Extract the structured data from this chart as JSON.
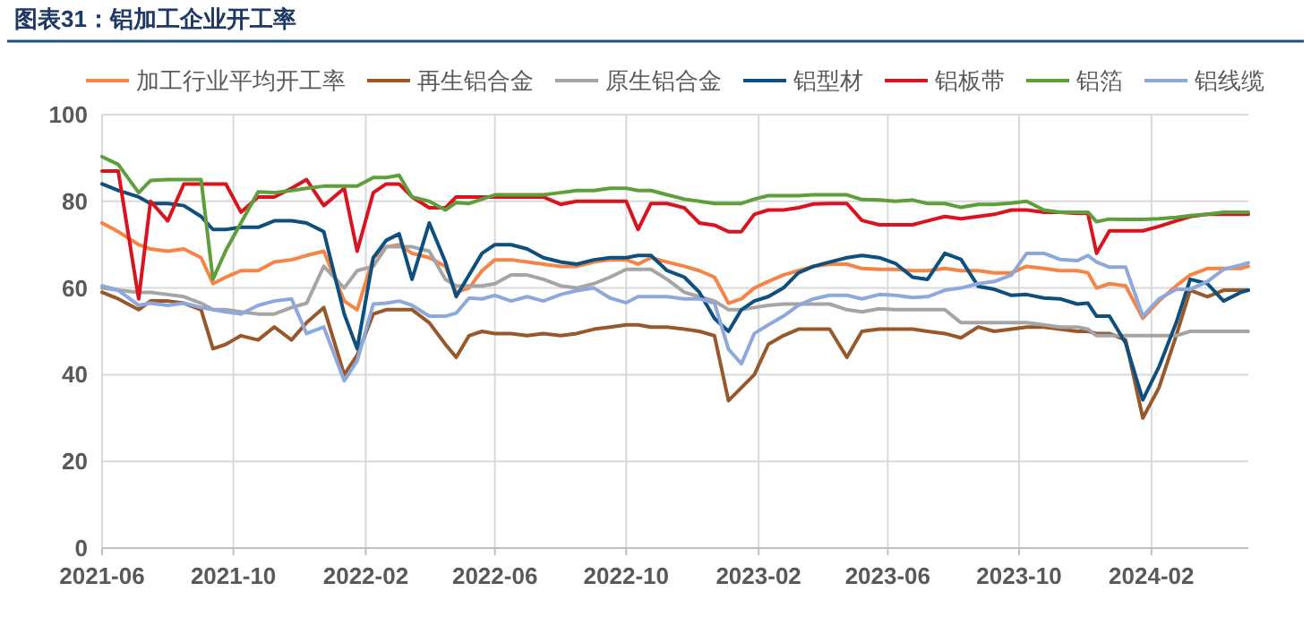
{
  "chart_data": {
    "type": "line",
    "title": "图表31：铝加工企业开工率",
    "legend": "top",
    "grid": true,
    "xlim": [
      "2021-06-01",
      "2024-05-01"
    ],
    "xticks": [
      "2021-06",
      "2021-10",
      "2022-02",
      "2022-06",
      "2022-10",
      "2023-02",
      "2023-06",
      "2023-10",
      "2024-02"
    ],
    "ylim": [
      0,
      100
    ],
    "yticks": [
      0,
      20,
      40,
      60,
      80,
      100
    ],
    "x": [
      "2021-06-01",
      "2021-06-16",
      "2021-07-05",
      "2021-07-16",
      "2021-08-01",
      "2021-08-16",
      "2021-09-01",
      "2021-09-12",
      "2021-09-24",
      "2021-10-08",
      "2021-10-24",
      "2021-11-08",
      "2021-11-24",
      "2021-12-08",
      "2021-12-24",
      "2022-01-12",
      "2022-01-24",
      "2022-02-08",
      "2022-02-20",
      "2022-03-04",
      "2022-03-16",
      "2022-04-01",
      "2022-04-16",
      "2022-04-26",
      "2022-05-08",
      "2022-05-20",
      "2022-06-01",
      "2022-06-16",
      "2022-07-01",
      "2022-07-16",
      "2022-08-01",
      "2022-08-16",
      "2022-09-01",
      "2022-09-16",
      "2022-10-01",
      "2022-10-12",
      "2022-10-24",
      "2022-11-08",
      "2022-11-24",
      "2022-12-08",
      "2022-12-22",
      "2023-01-04",
      "2023-01-16",
      "2023-01-28",
      "2023-02-10",
      "2023-02-24",
      "2023-03-10",
      "2023-03-24",
      "2023-04-08",
      "2023-04-24",
      "2023-05-08",
      "2023-05-24",
      "2023-06-08",
      "2023-06-24",
      "2023-07-08",
      "2023-07-24",
      "2023-08-08",
      "2023-08-24",
      "2023-09-08",
      "2023-09-24",
      "2023-10-08",
      "2023-10-24",
      "2023-11-08",
      "2023-11-24",
      "2023-12-04",
      "2023-12-12",
      "2023-12-24",
      "2024-01-08",
      "2024-01-24",
      "2024-02-08",
      "2024-02-24",
      "2024-03-08",
      "2024-03-24",
      "2024-04-08",
      "2024-04-24",
      "2024-05-01"
    ],
    "series": [
      {
        "name": "加工行业平均开工率",
        "color": "#f58445",
        "values": [
          75,
          73,
          70,
          69,
          68.5,
          69,
          67,
          61,
          62.5,
          64,
          64,
          66,
          66.5,
          67.5,
          68.5,
          57,
          55,
          67,
          69.5,
          70,
          68,
          67,
          65,
          59,
          60,
          64,
          66.5,
          66.5,
          66,
          65.5,
          65,
          65,
          66,
          66.5,
          66.5,
          65.5,
          67,
          66,
          65,
          64,
          62.5,
          56.5,
          57.5,
          60,
          61.5,
          63,
          64,
          65,
          65.5,
          65.5,
          64.5,
          64.3,
          64.3,
          64,
          64,
          64.5,
          64,
          64,
          63.5,
          63.5,
          65,
          64.5,
          64,
          64,
          63.5,
          60,
          61,
          60.5,
          53,
          57,
          60.5,
          63,
          64.5,
          64.5,
          64.5,
          65
        ]
      },
      {
        "name": "再生铝合金",
        "color": "#99582a",
        "values": [
          59,
          57.5,
          55,
          57,
          57,
          56.5,
          55,
          46,
          47,
          49,
          48,
          51,
          48,
          52,
          55.5,
          40,
          44.5,
          54,
          55,
          55,
          55,
          52,
          47,
          44,
          49,
          50,
          49.5,
          49.5,
          49,
          49.5,
          49,
          49.5,
          50.5,
          51,
          51.5,
          51.5,
          51,
          51,
          50.5,
          50,
          49,
          34,
          37,
          40,
          47,
          49,
          50.5,
          50.5,
          50.5,
          44,
          50,
          50.5,
          50.5,
          50.5,
          50,
          49.5,
          48.5,
          51,
          50,
          50.5,
          51,
          51,
          50.5,
          50,
          50,
          49.5,
          49.5,
          48,
          30,
          37,
          49,
          59.5,
          58,
          59.5,
          59.5,
          59.5
        ]
      },
      {
        "name": "原生铝合金",
        "color": "#a5a5a5",
        "values": [
          60,
          59.5,
          59,
          59,
          58.5,
          58,
          56.5,
          55,
          55,
          54.5,
          54,
          54,
          55.5,
          56.5,
          65,
          60,
          64,
          65,
          69.5,
          69.5,
          69.5,
          68.5,
          62,
          60.5,
          60.5,
          60.5,
          61,
          63,
          63,
          62,
          60.5,
          60,
          61,
          62.5,
          64.3,
          64.3,
          64.3,
          62,
          59,
          58,
          57,
          55,
          55,
          55.5,
          56,
          56.3,
          56.3,
          56.3,
          56.3,
          55,
          54.5,
          55.2,
          55,
          55,
          55,
          55,
          52,
          52,
          52,
          52,
          52,
          51.5,
          51,
          51,
          50.5,
          49,
          49,
          49,
          49,
          49,
          49,
          50,
          50,
          50,
          50,
          50
        ]
      },
      {
        "name": "铝型材",
        "color": "#0e4f7e",
        "values": [
          84,
          82.5,
          81,
          79.5,
          79.5,
          79,
          76.5,
          73.5,
          73.5,
          74,
          74,
          75.5,
          75.5,
          75,
          73,
          54,
          46,
          67,
          71,
          72.5,
          62,
          75,
          66,
          58,
          63,
          68,
          70,
          70,
          69,
          67,
          66,
          65.5,
          66.5,
          67,
          67,
          67.5,
          67.5,
          64,
          62.5,
          59,
          53,
          50,
          55,
          57,
          58,
          60,
          63.5,
          65,
          66,
          67,
          67.5,
          67,
          65.7,
          62.5,
          62,
          68,
          66.6,
          60.4,
          59.7,
          58.3,
          58.5,
          57.7,
          57.5,
          56.3,
          56.5,
          53.5,
          53.5,
          47.3,
          34.2,
          41.8,
          52,
          62,
          61,
          57,
          59,
          59.5
        ]
      },
      {
        "name": "铝板带",
        "color": "#d9141e",
        "values": [
          87,
          87,
          57.5,
          80,
          75.5,
          84,
          84,
          84,
          84,
          77.5,
          81,
          81,
          83,
          85,
          79,
          83,
          68.5,
          82,
          84,
          84,
          81,
          78.5,
          78.5,
          81,
          81,
          81,
          81,
          81,
          81,
          81,
          79.3,
          80,
          80,
          80,
          80,
          73.5,
          79.5,
          79.5,
          78.5,
          75,
          74.5,
          73,
          73,
          77,
          78,
          78,
          78.5,
          79.4,
          79.5,
          79.5,
          75.6,
          74.6,
          74.6,
          74.6,
          75.5,
          76.5,
          76,
          76.5,
          77,
          78,
          78,
          77.5,
          77.5,
          77.2,
          77.2,
          68,
          73.2,
          73.2,
          73.2,
          74.2,
          75.5,
          76.5,
          77,
          77,
          77,
          77
        ]
      },
      {
        "name": "铝箔",
        "color": "#5e9e3b",
        "values": [
          90.3,
          88.5,
          82,
          84.8,
          85,
          85,
          85,
          62,
          68.7,
          75,
          82.2,
          82,
          82.5,
          83,
          83.5,
          83.5,
          83.5,
          85.5,
          85.5,
          86,
          81,
          80,
          78,
          79.7,
          79.5,
          80.5,
          81.5,
          81.5,
          81.5,
          81.5,
          82,
          82.5,
          82.5,
          83,
          83,
          82.5,
          82.5,
          81.5,
          80.5,
          80,
          79.5,
          79.5,
          79.5,
          80.5,
          81.3,
          81.3,
          81.3,
          81.5,
          81.5,
          81.5,
          80.4,
          80.3,
          80,
          80.3,
          79.5,
          79.5,
          78.6,
          79.3,
          79.3,
          79.6,
          80,
          78,
          77.5,
          77.5,
          77.5,
          75.3,
          75.9,
          75.8,
          75.8,
          76,
          76.3,
          76.7,
          77,
          77.5,
          77.5,
          77.5
        ]
      },
      {
        "name": "铝线缆",
        "color": "#8fa8dc",
        "values": [
          60.5,
          59.5,
          56,
          56.5,
          56,
          56.5,
          55.5,
          55,
          54.5,
          54,
          56,
          57,
          57.5,
          49.5,
          51,
          38.6,
          43.2,
          56.3,
          56.5,
          57,
          56,
          53.5,
          53.5,
          54.2,
          57.7,
          57.5,
          58.3,
          57,
          58,
          57,
          58.5,
          59.4,
          60,
          57.7,
          56.6,
          58,
          58,
          58,
          57.5,
          57.5,
          56.5,
          45.9,
          42.5,
          49.5,
          51.5,
          53.5,
          56,
          57.5,
          58.3,
          58.3,
          57.5,
          58.5,
          58.3,
          57.8,
          58,
          59.5,
          60,
          61,
          61.5,
          63,
          68,
          68,
          66.6,
          66.3,
          67.5,
          66,
          64.8,
          64.8,
          53.5,
          57.5,
          59.7,
          59.7,
          61.5,
          64.3,
          65.3,
          65.8
        ]
      }
    ]
  }
}
